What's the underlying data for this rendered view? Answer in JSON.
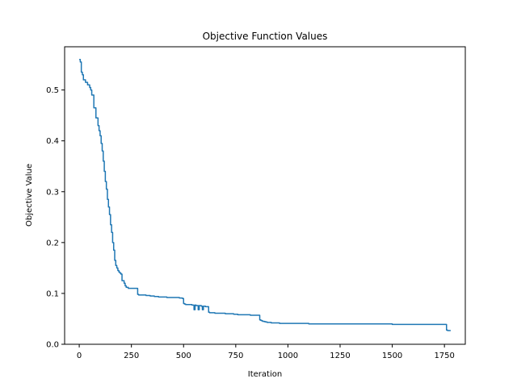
{
  "chart_data": {
    "type": "line",
    "title": "Objective Function Values",
    "xlabel": "Iteration",
    "ylabel": "Objective Value",
    "xlim": [
      -70,
      1850
    ],
    "ylim": [
      0.0,
      0.585
    ],
    "xticks": [
      0,
      250,
      500,
      750,
      1000,
      1250,
      1500,
      1750
    ],
    "xtick_labels": [
      "0",
      "250",
      "500",
      "750",
      "1000",
      "1250",
      "1500",
      "1750"
    ],
    "yticks": [
      0.0,
      0.1,
      0.2,
      0.3,
      0.4,
      0.5
    ],
    "ytick_labels": [
      "0.0",
      "0.1",
      "0.2",
      "0.3",
      "0.4",
      "0.5"
    ],
    "grid": false,
    "series": [
      {
        "color": "#1f77b4",
        "x": [
          0,
          5,
          10,
          15,
          20,
          30,
          40,
          50,
          55,
          60,
          70,
          80,
          90,
          95,
          100,
          105,
          110,
          115,
          120,
          125,
          130,
          135,
          140,
          145,
          150,
          155,
          160,
          165,
          170,
          175,
          180,
          185,
          190,
          195,
          200,
          205,
          210,
          215,
          220,
          225,
          235,
          245,
          255,
          265,
          275,
          280,
          285,
          300,
          320,
          340,
          360,
          380,
          400,
          420,
          440,
          460,
          480,
          490,
          495,
          500,
          505,
          510,
          530,
          540,
          545,
          550,
          555,
          560,
          565,
          570,
          575,
          580,
          585,
          590,
          595,
          600,
          605,
          610,
          615,
          620,
          625,
          630,
          650,
          680,
          700,
          720,
          740,
          750,
          760,
          780,
          800,
          820,
          840,
          860,
          865,
          870,
          875,
          880,
          890,
          900,
          920,
          940,
          960,
          980,
          1000,
          1050,
          1100,
          1150,
          1200,
          1250,
          1300,
          1350,
          1400,
          1450,
          1500,
          1550,
          1600,
          1650,
          1700,
          1750,
          1755,
          1760,
          1765,
          1770,
          1780
        ],
        "y": [
          0.56,
          0.555,
          0.535,
          0.53,
          0.52,
          0.515,
          0.51,
          0.505,
          0.5,
          0.49,
          0.465,
          0.445,
          0.43,
          0.42,
          0.41,
          0.395,
          0.38,
          0.36,
          0.34,
          0.32,
          0.305,
          0.285,
          0.27,
          0.255,
          0.235,
          0.22,
          0.2,
          0.185,
          0.165,
          0.155,
          0.15,
          0.145,
          0.142,
          0.14,
          0.138,
          0.125,
          0.125,
          0.12,
          0.115,
          0.112,
          0.11,
          0.11,
          0.11,
          0.11,
          0.11,
          0.098,
          0.097,
          0.097,
          0.096,
          0.095,
          0.094,
          0.093,
          0.093,
          0.092,
          0.092,
          0.092,
          0.091,
          0.091,
          0.09,
          0.08,
          0.079,
          0.078,
          0.078,
          0.077,
          0.077,
          0.068,
          0.077,
          0.076,
          0.076,
          0.068,
          0.076,
          0.076,
          0.075,
          0.068,
          0.075,
          0.075,
          0.074,
          0.074,
          0.074,
          0.063,
          0.062,
          0.062,
          0.061,
          0.061,
          0.06,
          0.06,
          0.059,
          0.059,
          0.058,
          0.058,
          0.058,
          0.057,
          0.057,
          0.057,
          0.048,
          0.047,
          0.046,
          0.045,
          0.044,
          0.043,
          0.042,
          0.042,
          0.041,
          0.041,
          0.041,
          0.041,
          0.04,
          0.04,
          0.04,
          0.04,
          0.04,
          0.04,
          0.04,
          0.04,
          0.039,
          0.039,
          0.039,
          0.039,
          0.039,
          0.039,
          0.039,
          0.028,
          0.027,
          0.027,
          0.027
        ]
      }
    ]
  }
}
